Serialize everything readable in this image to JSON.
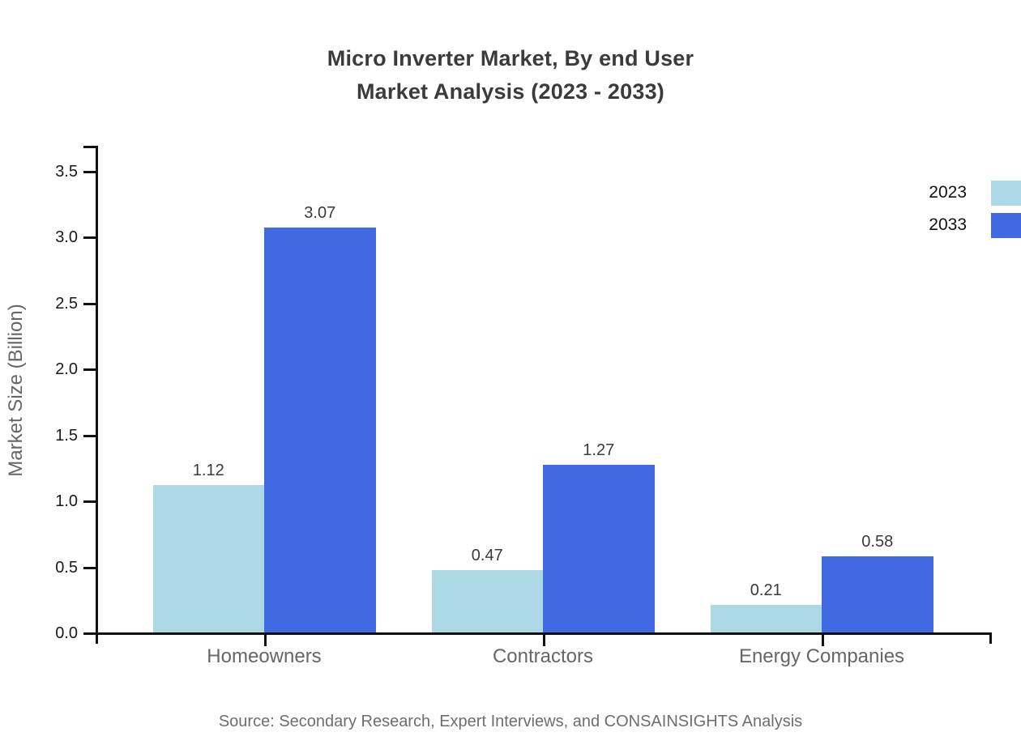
{
  "title": {
    "line1": "Micro Inverter Market, By end User",
    "line2": "Market Analysis (2023 - 2033)"
  },
  "source_note": "Source: Secondary Research, Expert Interviews, and CONSAINSIGHTS Analysis",
  "legend": {
    "items": [
      {
        "label": "2023",
        "color": "#ADD8E6"
      },
      {
        "label": "2033",
        "color": "#4169E1"
      }
    ]
  },
  "chart_data": {
    "type": "bar",
    "title": "Micro Inverter Market, By end User Market Analysis (2023 - 2033)",
    "categories": [
      "Homeowners",
      "Contractors",
      "Energy Companies"
    ],
    "series": [
      {
        "name": "2023",
        "color": "#ADD8E6",
        "values": [
          1.12,
          0.47,
          0.21
        ]
      },
      {
        "name": "2033",
        "color": "#4169E1",
        "values": [
          3.07,
          1.27,
          0.58
        ]
      }
    ],
    "value_labels": [
      "1.12",
      "3.07",
      "0.47",
      "1.27",
      "0.21",
      "0.58"
    ],
    "xlabel": "",
    "ylabel": "Market Size (Billion)",
    "ylim": [
      0,
      3.69
    ],
    "yticks": [
      "0.0",
      "0.5",
      "1.0",
      "1.5",
      "2.0",
      "2.5",
      "3.0",
      "3.5"
    ],
    "grid": false,
    "legend_position": "outside upper right",
    "axis_color": "#111111",
    "background": "#ffffff"
  }
}
